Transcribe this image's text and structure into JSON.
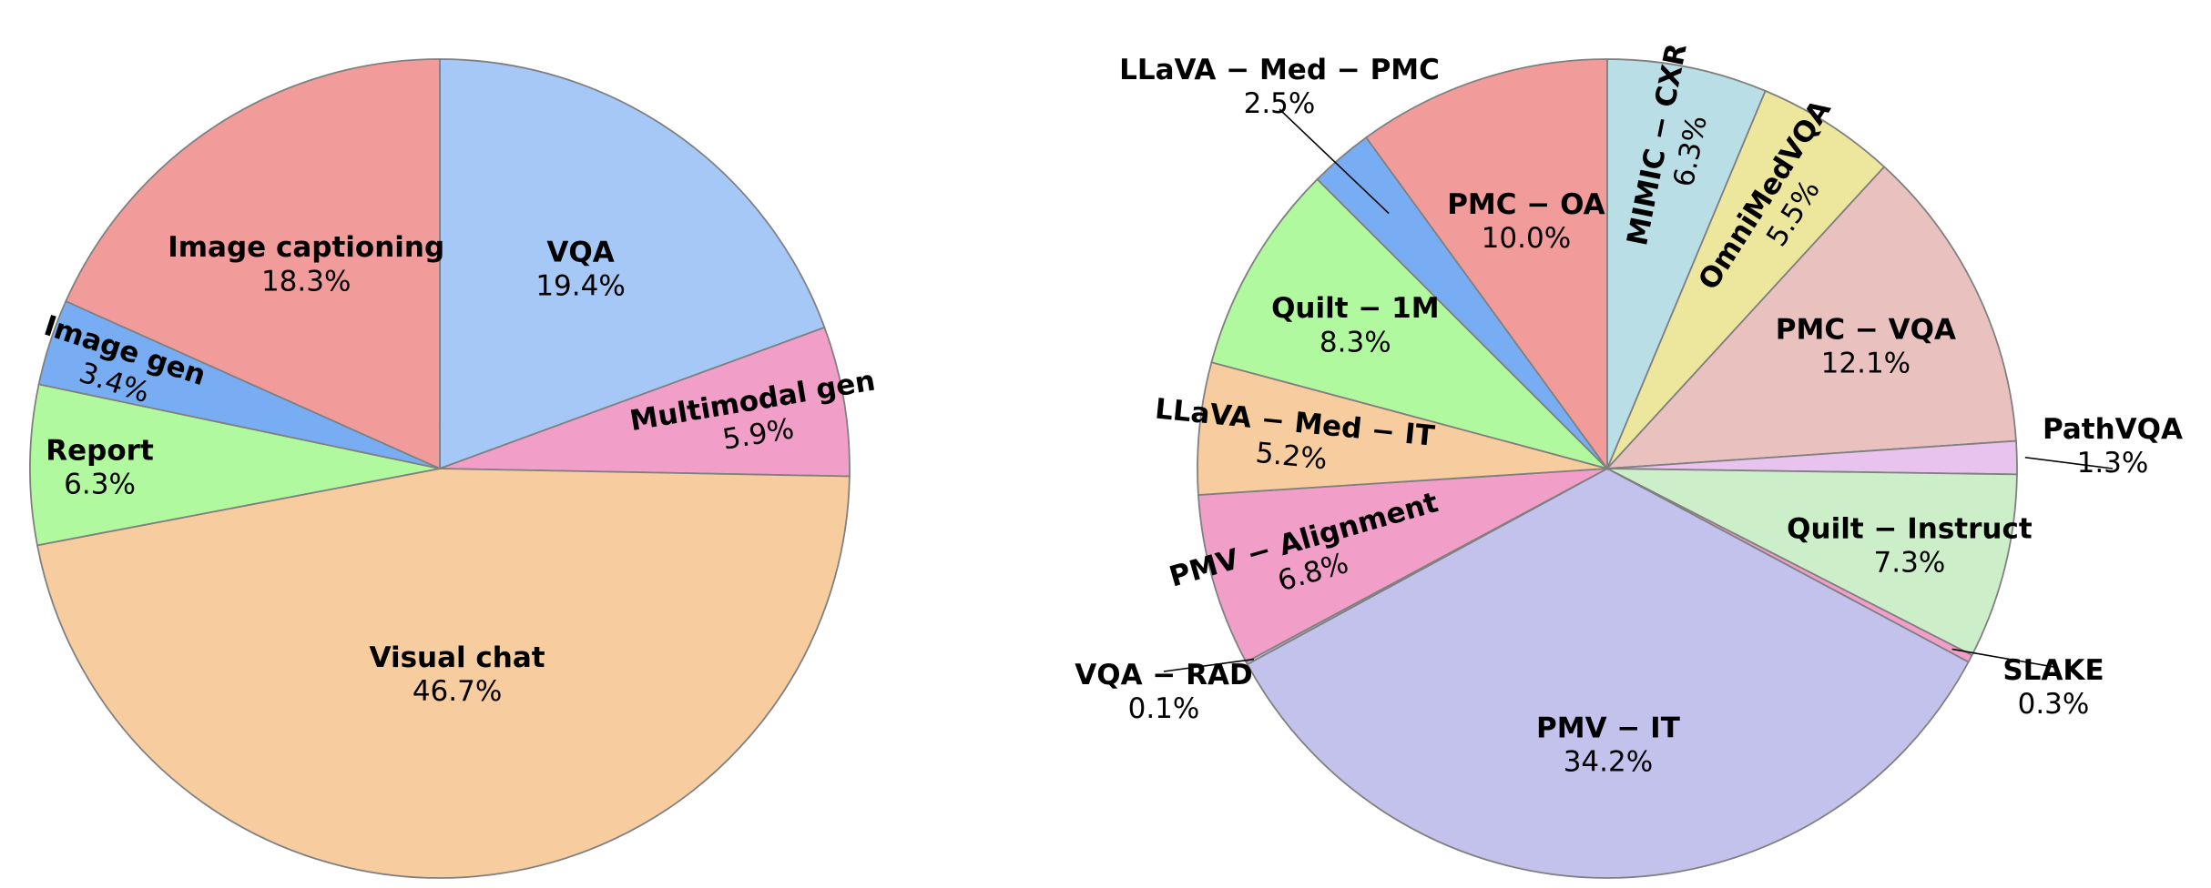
{
  "chart_data": [
    {
      "type": "pie",
      "start_angle_deg": 90,
      "direction": "clockwise",
      "slices": [
        {
          "name": "VQA",
          "value": 19.4,
          "label": "19.4%",
          "color": "#a5c8f7",
          "label_dist": 0.6,
          "rotate": false
        },
        {
          "name": "Multimodal gen",
          "value": 5.9,
          "label": "5.9%",
          "color": "#f19ec9",
          "label_dist": 0.78,
          "rotate": true
        },
        {
          "name": "Visual chat",
          "value": 46.7,
          "label": "46.7%",
          "color": "#f7cc9e",
          "label_dist": 0.5,
          "rotate": false
        },
        {
          "name": "Report",
          "value": 6.3,
          "label": "6.3%",
          "color": "#b0f99e",
          "label_dist": 0.83,
          "rotate": false
        },
        {
          "name": "Image gen",
          "value": 3.4,
          "label": "3.4%",
          "color": "#78adf4",
          "label_dist": 0.82,
          "rotate": true
        },
        {
          "name": "Image captioning",
          "value": 18.3,
          "label": "18.3%",
          "color": "#f19c9b",
          "label_dist": 0.6,
          "rotate": false
        }
      ]
    },
    {
      "type": "pie",
      "start_angle_deg": 90,
      "direction": "clockwise",
      "slices": [
        {
          "name": "MIMIC − CXR",
          "value": 6.3,
          "label": "6.3%",
          "color": "#badee5",
          "label_dist": 0.8,
          "rotate": true
        },
        {
          "name": "OmniMedVQA",
          "value": 5.5,
          "label": "5.5%",
          "color": "#ede69d",
          "label_dist": 0.77,
          "rotate": true
        },
        {
          "name": "PMC − VQA",
          "value": 12.1,
          "label": "12.1%",
          "color": "#e9c2c0",
          "label_dist": 0.7,
          "rotate": false
        },
        {
          "name": "PathVQA",
          "value": 1.3,
          "label": "1.3%",
          "color": "#e8c3ee",
          "label_dist": 1.12,
          "rotate": false,
          "external": true
        },
        {
          "name": "Quilt − Instruct",
          "value": 7.3,
          "label": "7.3%",
          "color": "#ccefc9",
          "label_dist": 0.76,
          "rotate": false
        },
        {
          "name": "SLAKE",
          "value": 0.3,
          "label": "0.3%",
          "color": "#f19ec9",
          "label_dist": 1.12,
          "rotate": false,
          "external": true
        },
        {
          "name": "PMV − IT",
          "value": 34.2,
          "label": "34.2%",
          "color": "#c3c2ed",
          "label_dist": 0.67,
          "rotate": false
        },
        {
          "name": "VQA − RAD",
          "value": 0.1,
          "label": "0.1%",
          "color": "#c3c2ed",
          "label_dist": 1.12,
          "rotate": false,
          "external": true
        },
        {
          "name": "PMV − Alignment",
          "value": 6.8,
          "label": "6.8%",
          "color": "#f19ec9",
          "label_dist": 0.76,
          "rotate": true
        },
        {
          "name": "LLaVA − Med − IT",
          "value": 5.2,
          "label": "5.2%",
          "color": "#f7cc9e",
          "label_dist": 0.77,
          "rotate": true
        },
        {
          "name": "Quilt − 1M",
          "value": 8.3,
          "label": "8.3%",
          "color": "#b0f99e",
          "label_dist": 0.71,
          "rotate": false
        },
        {
          "name": "LLaVA − Med − PMC",
          "value": 2.5,
          "label": "2.5%",
          "color": "#78adf4",
          "label_dist": 1.12,
          "rotate": false,
          "external": true
        },
        {
          "name": "PMC − OA",
          "value": 10.0,
          "label": "10.0%",
          "color": "#f19c9b",
          "label_dist": 0.64,
          "rotate": false
        }
      ]
    }
  ]
}
